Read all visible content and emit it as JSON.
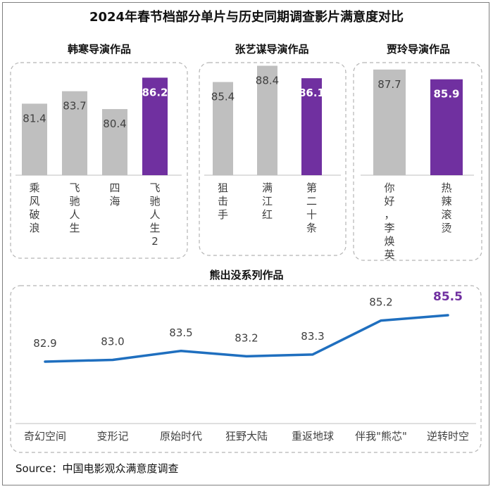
{
  "title": "2024年春节档部分单片与历史同期调查影片满意度对比",
  "source": "Source：中国电影观众满意度调查",
  "colors": {
    "gray_bar": "#bfbfbf",
    "highlight": "#7030a0",
    "line": "#1f6fbf"
  },
  "chart_data": [
    {
      "type": "bar",
      "title": "韩寒导演作品",
      "categories": [
        "乘风破浪",
        "飞驰人生",
        "四海",
        "飞驰人生2"
      ],
      "values": [
        81.4,
        83.7,
        80.4,
        86.2
      ],
      "highlight_index": 3
    },
    {
      "type": "bar",
      "title": "张艺谋导演作品",
      "categories": [
        "狙击手",
        "满江红",
        "第二十条"
      ],
      "values": [
        85.4,
        88.4,
        86.1
      ],
      "highlight_index": 2
    },
    {
      "type": "bar",
      "title": "贾玲导演作品",
      "categories": [
        "你好，李焕英",
        "热辣滚烫"
      ],
      "values": [
        87.7,
        85.9
      ],
      "highlight_index": 1
    },
    {
      "type": "line",
      "title": "熊出没系列作品",
      "categories": [
        "奇幻空间",
        "变形记",
        "原始时代",
        "狂野大陆",
        "重返地球",
        "伴我\"熊芯\"",
        "逆转时空"
      ],
      "values": [
        82.9,
        83.0,
        83.5,
        83.2,
        83.3,
        85.2,
        85.5
      ],
      "highlight_index": 6
    }
  ]
}
